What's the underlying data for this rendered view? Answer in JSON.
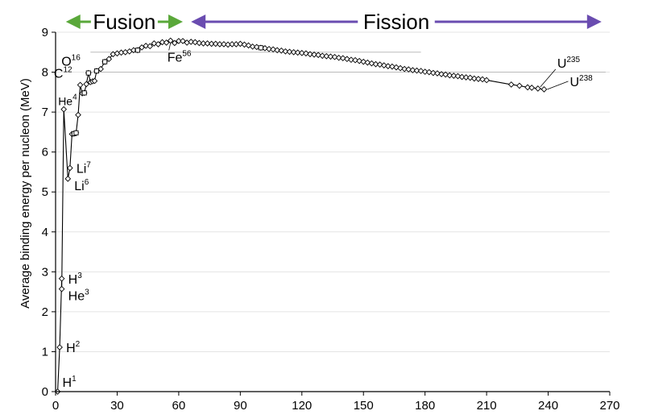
{
  "chart_data": {
    "type": "scatter",
    "ylabel": "Average binding energy per nucleon (MeV)",
    "xlim": [
      0,
      270
    ],
    "ylim": [
      0,
      9
    ],
    "x_ticks": [
      "0",
      "30",
      "60",
      "90",
      "120",
      "150",
      "180",
      "210",
      "240",
      "270"
    ],
    "y_ticks": [
      "0",
      "1",
      "2",
      "3",
      "4",
      "5",
      "6",
      "7",
      "8",
      "9"
    ],
    "grid": "horizontal",
    "banner": {
      "fusion": {
        "label": "Fusion",
        "color": "#5aa83a",
        "x_range": [
          5,
          62
        ]
      },
      "fission": {
        "label": "Fission",
        "color": "#6a4cb0",
        "x_range": [
          66,
          266
        ]
      }
    },
    "series": [
      {
        "marker": "diamond",
        "points": [
          [
            1,
            0
          ],
          [
            2,
            1.11
          ],
          [
            3,
            2.83
          ],
          [
            3,
            2.57
          ],
          [
            4,
            7.07
          ],
          [
            6,
            5.33
          ],
          [
            7,
            5.6
          ],
          [
            8,
            6.45
          ],
          [
            9,
            6.46
          ],
          [
            10,
            6.48
          ],
          [
            11,
            6.93
          ],
          [
            12,
            7.68
          ],
          [
            13,
            7.47
          ],
          [
            14,
            7.48
          ],
          [
            15,
            7.7
          ],
          [
            16,
            7.98
          ],
          [
            17,
            7.75
          ],
          [
            18,
            7.77
          ],
          [
            19,
            7.78
          ],
          [
            20,
            8.03
          ],
          [
            22,
            8.08
          ],
          [
            24,
            8.26
          ],
          [
            26,
            8.33
          ],
          [
            28,
            8.45
          ],
          [
            30,
            8.47
          ],
          [
            32,
            8.49
          ],
          [
            34,
            8.5
          ],
          [
            36,
            8.52
          ],
          [
            38,
            8.55
          ],
          [
            40,
            8.55
          ],
          [
            42,
            8.62
          ],
          [
            44,
            8.66
          ],
          [
            46,
            8.65
          ],
          [
            48,
            8.72
          ],
          [
            50,
            8.7
          ],
          [
            52,
            8.75
          ],
          [
            54,
            8.74
          ],
          [
            56,
            8.79
          ],
          [
            58,
            8.73
          ],
          [
            60,
            8.78
          ],
          [
            62,
            8.78
          ],
          [
            64,
            8.74
          ],
          [
            66,
            8.76
          ],
          [
            68,
            8.75
          ],
          [
            70,
            8.73
          ],
          [
            72,
            8.72
          ],
          [
            74,
            8.72
          ],
          [
            76,
            8.71
          ],
          [
            78,
            8.71
          ],
          [
            80,
            8.7
          ],
          [
            82,
            8.7
          ],
          [
            84,
            8.69
          ],
          [
            86,
            8.7
          ],
          [
            88,
            8.7
          ],
          [
            90,
            8.71
          ],
          [
            92,
            8.69
          ],
          [
            94,
            8.67
          ],
          [
            96,
            8.64
          ],
          [
            98,
            8.63
          ],
          [
            100,
            8.61
          ],
          [
            102,
            8.6
          ],
          [
            104,
            8.58
          ],
          [
            106,
            8.57
          ],
          [
            108,
            8.55
          ],
          [
            110,
            8.54
          ],
          [
            112,
            8.52
          ],
          [
            114,
            8.51
          ],
          [
            116,
            8.5
          ],
          [
            118,
            8.49
          ],
          [
            120,
            8.48
          ],
          [
            122,
            8.47
          ],
          [
            124,
            8.45
          ],
          [
            126,
            8.44
          ],
          [
            128,
            8.43
          ],
          [
            130,
            8.41
          ],
          [
            132,
            8.4
          ],
          [
            134,
            8.39
          ],
          [
            136,
            8.38
          ],
          [
            138,
            8.36
          ],
          [
            140,
            8.35
          ],
          [
            142,
            8.33
          ],
          [
            144,
            8.31
          ],
          [
            146,
            8.3
          ],
          [
            148,
            8.28
          ],
          [
            150,
            8.26
          ],
          [
            152,
            8.24
          ],
          [
            154,
            8.22
          ],
          [
            156,
            8.2
          ],
          [
            158,
            8.19
          ],
          [
            160,
            8.17
          ],
          [
            162,
            8.15
          ],
          [
            164,
            8.14
          ],
          [
            166,
            8.12
          ],
          [
            168,
            8.1
          ],
          [
            170,
            8.08
          ],
          [
            172,
            8.07
          ],
          [
            174,
            8.05
          ],
          [
            176,
            8.04
          ],
          [
            178,
            8.03
          ],
          [
            180,
            8.01
          ],
          [
            182,
            8.0
          ],
          [
            184,
            7.98
          ],
          [
            186,
            7.97
          ],
          [
            188,
            7.95
          ],
          [
            190,
            7.94
          ],
          [
            192,
            7.92
          ],
          [
            194,
            7.91
          ],
          [
            196,
            7.9
          ],
          [
            198,
            7.88
          ],
          [
            200,
            7.87
          ],
          [
            202,
            7.86
          ],
          [
            204,
            7.84
          ],
          [
            206,
            7.83
          ],
          [
            208,
            7.82
          ],
          [
            210,
            7.8
          ],
          [
            222,
            7.69
          ],
          [
            226,
            7.66
          ],
          [
            230,
            7.62
          ],
          [
            232,
            7.61
          ],
          [
            235,
            7.59
          ],
          [
            238,
            7.57
          ]
        ]
      },
      {
        "marker": "square",
        "points": [
          [
            9,
            6.46
          ],
          [
            10,
            6.48
          ],
          [
            14,
            7.48
          ],
          [
            16,
            7.98
          ],
          [
            20,
            8.03
          ],
          [
            24,
            8.26
          ],
          [
            40,
            8.55
          ],
          [
            100,
            8.61
          ]
        ]
      }
    ],
    "reference_lines": [
      {
        "y": 8.5,
        "x_from": 17,
        "x_to": 178,
        "color": "#bbbbbb"
      },
      {
        "y": 8.0,
        "x_from": 17,
        "x_to": 268,
        "color": "#bbbbbb"
      }
    ],
    "annotations": [
      {
        "label": "H",
        "sup": "1",
        "x": 1,
        "y": 0,
        "pos": "right-up"
      },
      {
        "label": "H",
        "sup": "2",
        "x": 2,
        "y": 1.11,
        "pos": "right"
      },
      {
        "label": "H",
        "sup": "3",
        "x": 3,
        "y": 2.83,
        "pos": "right"
      },
      {
        "label": "He",
        "sup": "3",
        "x": 3,
        "y": 2.57,
        "pos": "right-down"
      },
      {
        "label": "He",
        "sup": "4",
        "x": 4,
        "y": 7.07,
        "pos": "above"
      },
      {
        "label": "Li",
        "sup": "7",
        "x": 7,
        "y": 5.6,
        "pos": "right"
      },
      {
        "label": "Li",
        "sup": "6",
        "x": 6,
        "y": 5.33,
        "pos": "right-down"
      },
      {
        "label": "C",
        "sup": "12",
        "x": 12,
        "y": 7.68,
        "pos": "left-up"
      },
      {
        "label": "O",
        "sup": "16",
        "x": 16,
        "y": 7.98,
        "pos": "left-up"
      },
      {
        "label": "Fe",
        "sup": "56",
        "x": 56,
        "y": 8.79,
        "pos": "below"
      },
      {
        "label": "U",
        "sup": "235",
        "x": 235,
        "y": 7.59,
        "pos": "right-up"
      },
      {
        "label": "U",
        "sup": "238",
        "x": 238,
        "y": 7.57,
        "pos": "right"
      }
    ]
  }
}
